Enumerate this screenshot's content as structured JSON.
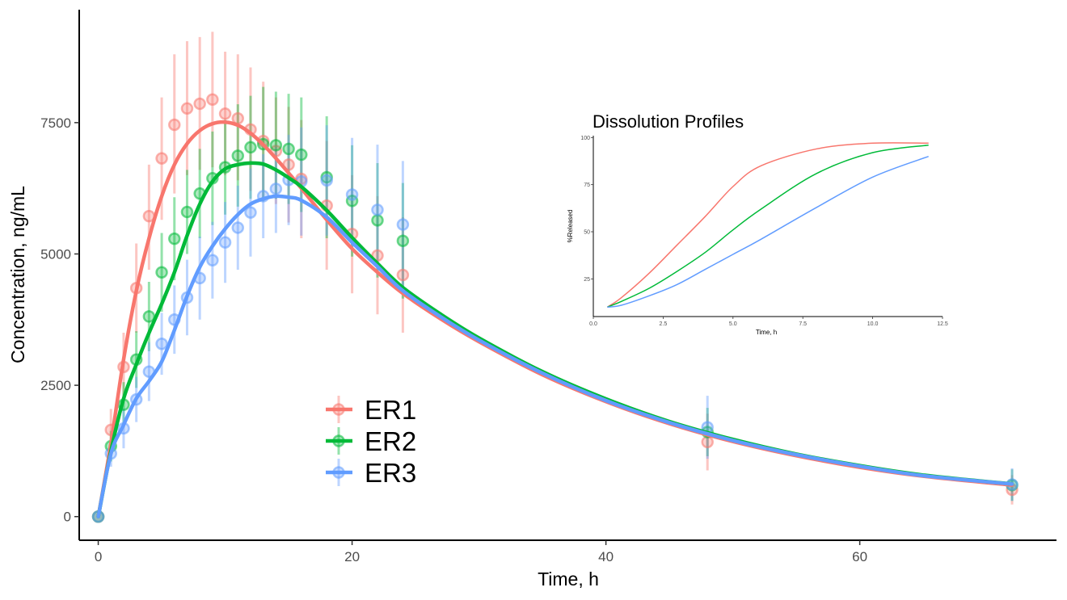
{
  "chart_data": [
    {
      "type": "line",
      "title": "",
      "xlabel": "Time, h",
      "ylabel": "Concentration, ng/mL",
      "xlim": [
        -1.5,
        75.5
      ],
      "ylim": [
        -450,
        9650
      ],
      "x_ticks": [
        0,
        20,
        40,
        60
      ],
      "y_ticks": [
        0,
        2500,
        5000,
        7500
      ],
      "x_tick_labels": [
        "0",
        "20",
        "40",
        "60"
      ],
      "y_tick_labels": [
        "0",
        "2500",
        "5000",
        "7500"
      ],
      "grid": false,
      "legend_position": "bottom-center inside plot",
      "series": [
        {
          "name": "ER1",
          "color": "#F8766D",
          "observed": {
            "x": [
              0,
              1,
              2,
              3,
              4,
              5,
              6,
              7,
              8,
              9,
              10,
              11,
              12,
              13,
              14,
              15,
              16,
              18,
              20,
              22,
              24,
              48,
              72
            ],
            "y": [
              0,
              1650,
              2850,
              4350,
              5720,
              6820,
              7460,
              7770,
              7860,
              7940,
              7670,
              7580,
              7370,
              7150,
              6960,
              6700,
              6430,
              5920,
              5380,
              4970,
              4600,
              1420,
              510
            ],
            "error_low": [
              0,
              1250,
              2200,
              3500,
              4700,
              5650,
              6150,
              6500,
              6600,
              6650,
              6500,
              6400,
              6200,
              6050,
              5950,
              5600,
              5300,
              4700,
              4250,
              3850,
              3500,
              880,
              230
            ],
            "error_high": [
              0,
              2050,
              3500,
              5200,
              6700,
              7980,
              8800,
              9050,
              9130,
              9230,
              8850,
              8800,
              8550,
              8280,
              7980,
              7800,
              7550,
              7150,
              6500,
              6100,
              5700,
              1960,
              790
            ]
          },
          "predicted": {
            "x": [
              0,
              1,
              2,
              3,
              4,
              5,
              6,
              7,
              8,
              9,
              10,
              11,
              12,
              13,
              14,
              15,
              16,
              18,
              20,
              22,
              24,
              27,
              30,
              35,
              40,
              45,
              50,
              55,
              60,
              65,
              72
            ],
            "y": [
              0,
              1400,
              3000,
              4300,
              5300,
              6100,
              6700,
              7100,
              7350,
              7480,
              7510,
              7450,
              7300,
              7080,
              6820,
              6540,
              6250,
              5650,
              5100,
              4650,
              4250,
              3760,
              3330,
              2700,
              2190,
              1770,
              1430,
              1160,
              940,
              770,
              600
            ]
          }
        },
        {
          "name": "ER2",
          "color": "#00BA38",
          "observed": {
            "x": [
              0,
              1,
              2,
              3,
              4,
              5,
              6,
              7,
              8,
              9,
              10,
              11,
              12,
              13,
              14,
              15,
              16,
              18,
              20,
              22,
              24,
              48,
              72
            ],
            "y": [
              0,
              1340,
              2130,
              2990,
              3810,
              4650,
              5290,
              5800,
              6150,
              6440,
              6650,
              6870,
              7030,
              7090,
              7070,
              7000,
              6890,
              6460,
              6010,
              5640,
              5250,
              1610,
              600
            ],
            "error_low": [
              0,
              1050,
              1700,
              2450,
              3150,
              3900,
              4500,
              5000,
              5300,
              5550,
              5750,
              5900,
              6050,
              6000,
              6050,
              5950,
              5800,
              5300,
              4950,
              4550,
              4150,
              1150,
              300
            ],
            "error_high": [
              0,
              1630,
              2560,
              3530,
              4470,
              5400,
              6080,
              6600,
              7000,
              7330,
              7550,
              7850,
              8010,
              8180,
              8090,
              8050,
              7980,
              7620,
              7070,
              6730,
              6350,
              2070,
              900
            ]
          },
          "predicted": {
            "x": [
              0,
              1,
              2,
              3,
              4,
              5,
              6,
              7,
              8,
              9,
              10,
              11,
              12,
              13,
              14,
              15,
              16,
              18,
              20,
              22,
              24,
              27,
              30,
              35,
              40,
              45,
              50,
              55,
              60,
              65,
              72
            ],
            "y": [
              0,
              1250,
              2250,
              2900,
              3500,
              4050,
              4650,
              5350,
              5950,
              6380,
              6620,
              6700,
              6730,
              6710,
              6600,
              6450,
              6280,
              5830,
              5310,
              4820,
              4360,
              3850,
              3400,
              2760,
              2240,
              1810,
              1470,
              1190,
              970,
              790,
              620
            ]
          }
        },
        {
          "name": "ER3",
          "color": "#619CFF",
          "observed": {
            "x": [
              0,
              1,
              2,
              3,
              4,
              5,
              6,
              7,
              8,
              9,
              10,
              11,
              12,
              13,
              14,
              15,
              16,
              18,
              20,
              22,
              24,
              48,
              72
            ],
            "y": [
              0,
              1200,
              1680,
              2230,
              2760,
              3290,
              3750,
              4170,
              4540,
              4880,
              5220,
              5500,
              5790,
              6100,
              6240,
              6410,
              6380,
              6400,
              6130,
              5840,
              5560,
              1700,
              610
            ],
            "error_low": [
              0,
              950,
              1300,
              1800,
              2200,
              2700,
              3100,
              3450,
              3750,
              4150,
              4450,
              4700,
              4950,
              5300,
              5400,
              5550,
              5350,
              5350,
              5050,
              4600,
              4350,
              1100,
              300
            ],
            "error_high": [
              0,
              1450,
              2060,
              2660,
              3320,
              3880,
              4400,
              4890,
              5330,
              5610,
              5990,
              6300,
              6630,
              6900,
              7080,
              7270,
              7410,
              7450,
              7210,
              7080,
              6770,
              2300,
              920
            ]
          },
          "predicted": {
            "x": [
              0,
              1,
              2,
              3,
              4,
              5,
              6,
              7,
              8,
              9,
              10,
              11,
              12,
              13,
              14,
              15,
              16,
              18,
              20,
              22,
              24,
              27,
              30,
              35,
              40,
              45,
              50,
              55,
              60,
              65,
              72
            ],
            "y": [
              0,
              1200,
              1750,
              2250,
              2580,
              2950,
              3550,
              4200,
              4750,
              5150,
              5480,
              5750,
              5950,
              6050,
              6100,
              6080,
              6020,
              5700,
              5220,
              4760,
              4300,
              3800,
              3360,
              2730,
              2210,
              1790,
              1450,
              1180,
              960,
              780,
              620
            ]
          }
        }
      ]
    },
    {
      "type": "line",
      "title": "Dissolution Profiles",
      "xlabel": "Time, h",
      "ylabel": "%Released",
      "xlim": [
        0.0,
        12.5
      ],
      "ylim": [
        5,
        101
      ],
      "x_ticks": [
        0.0,
        2.5,
        5.0,
        7.5,
        10.0,
        12.5
      ],
      "y_ticks": [
        25,
        50,
        75,
        100
      ],
      "x_tick_labels": [
        "0.0",
        "2.5",
        "5.0",
        "7.5",
        "10.0",
        "12.5"
      ],
      "y_tick_labels": [
        "25",
        "50",
        "75",
        "100"
      ],
      "grid": false,
      "legend_position": "none",
      "position": "inset top-right",
      "series": [
        {
          "color": "#F8766D",
          "x": [
            0.5,
            1,
            2,
            3,
            4,
            5,
            6,
            8,
            10,
            12
          ],
          "y": [
            10,
            15,
            28,
            43,
            58,
            74,
            85,
            94,
            97,
            97
          ]
        },
        {
          "color": "#00BA38",
          "x": [
            0.5,
            1,
            2,
            3,
            4,
            5,
            6,
            8,
            10,
            12
          ],
          "y": [
            10,
            13,
            20,
            29,
            39,
            51,
            62,
            81,
            92,
            96
          ]
        },
        {
          "color": "#619CFF",
          "x": [
            0.5,
            1,
            2,
            3,
            4,
            5,
            6,
            8,
            10,
            12
          ],
          "y": [
            10,
            11,
            16,
            22,
            30,
            38,
            46,
            63,
            79,
            90
          ]
        }
      ]
    }
  ]
}
